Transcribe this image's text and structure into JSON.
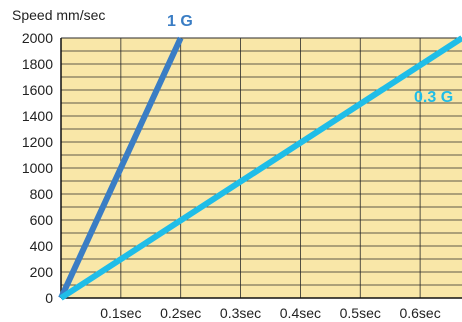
{
  "chart_data": {
    "type": "line",
    "ylabel": "Speed mm/sec",
    "xlabel": "",
    "xlim": [
      0,
      0.67
    ],
    "ylim": [
      0,
      2000
    ],
    "xticks": [
      {
        "value": 0.1,
        "label": "0.1sec"
      },
      {
        "value": 0.2,
        "label": "0.2sec"
      },
      {
        "value": 0.3,
        "label": "0.3sec"
      },
      {
        "value": 0.4,
        "label": "0.4sec"
      },
      {
        "value": 0.5,
        "label": "0.5sec"
      },
      {
        "value": 0.6,
        "label": "0.6sec"
      }
    ],
    "yticks": [
      {
        "value": 0,
        "label": "0"
      },
      {
        "value": 200,
        "label": "200"
      },
      {
        "value": 400,
        "label": "400"
      },
      {
        "value": 600,
        "label": "600"
      },
      {
        "value": 800,
        "label": "800"
      },
      {
        "value": 1000,
        "label": "1000"
      },
      {
        "value": 1200,
        "label": "1200"
      },
      {
        "value": 1400,
        "label": "1400"
      },
      {
        "value": 1600,
        "label": "1600"
      },
      {
        "value": 1800,
        "label": "1800"
      },
      {
        "value": 2000,
        "label": "2000"
      }
    ],
    "y_minor_step": 100,
    "grid": true,
    "series": [
      {
        "name": "1 G",
        "color": "#3a7dc4",
        "points": [
          [
            0,
            0
          ],
          [
            0.2,
            2000
          ]
        ]
      },
      {
        "name": "0.3 G",
        "color": "#1fbde8",
        "points": [
          [
            0,
            0
          ],
          [
            0.67,
            2000
          ]
        ]
      }
    ],
    "colors": {
      "plot_background": "#f9e7a8",
      "grid": "#2a2a2a"
    }
  }
}
